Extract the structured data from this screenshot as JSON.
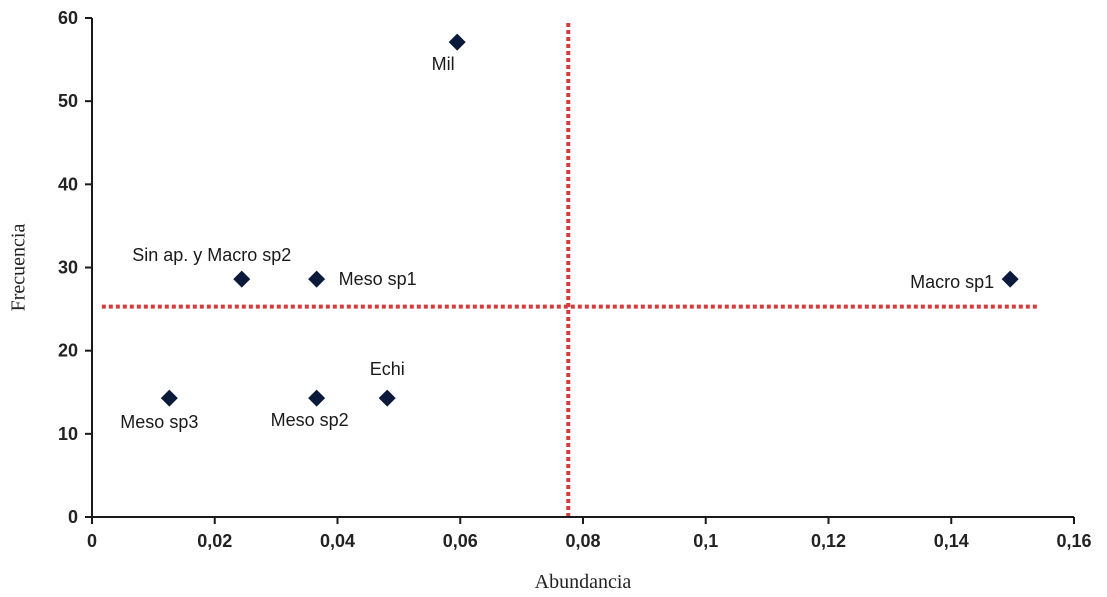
{
  "chart_data": {
    "type": "scatter",
    "xlabel": "Abundancia",
    "ylabel": "Frecuencia",
    "xlim": [
      0,
      0.16
    ],
    "ylim": [
      0,
      60
    ],
    "grid": false,
    "x_ticks": [
      {
        "value": 0,
        "label": "0"
      },
      {
        "value": 0.02,
        "label": "0,02"
      },
      {
        "value": 0.04,
        "label": "0,04"
      },
      {
        "value": 0.06,
        "label": "0,06"
      },
      {
        "value": 0.08,
        "label": "0,08"
      },
      {
        "value": 0.1,
        "label": "0,1"
      },
      {
        "value": 0.12,
        "label": "0,12"
      },
      {
        "value": 0.14,
        "label": "0,14"
      },
      {
        "value": 0.16,
        "label": "0,16"
      }
    ],
    "y_ticks": [
      {
        "value": 0,
        "label": "0"
      },
      {
        "value": 10,
        "label": "10"
      },
      {
        "value": 20,
        "label": "20"
      },
      {
        "value": 30,
        "label": "30"
      },
      {
        "value": 40,
        "label": "40"
      },
      {
        "value": 50,
        "label": "50"
      },
      {
        "value": 60,
        "label": "60"
      }
    ],
    "points": [
      {
        "label": "Mil",
        "x": 0.0595,
        "y": 57.1
      },
      {
        "label": "Sin ap. y Macro sp2",
        "x": 0.0244,
        "y": 28.6
      },
      {
        "label": "Meso sp1",
        "x": 0.0366,
        "y": 28.6
      },
      {
        "label": "Macro sp1",
        "x": 0.1496,
        "y": 28.6
      },
      {
        "label": "Echi",
        "x": 0.0481,
        "y": 14.3
      },
      {
        "label": "Meso sp3",
        "x": 0.0126,
        "y": 14.3
      },
      {
        "label": "Meso sp2",
        "x": 0.0366,
        "y": 14.3
      }
    ],
    "reference_lines": [
      {
        "orientation": "vertical",
        "x": 0.0776,
        "y_from": 0,
        "y_to": 59.5,
        "color": "#d63c3c",
        "style": "dotted"
      },
      {
        "orientation": "horizontal",
        "y": 25.3,
        "x_from": 0.0016,
        "x_to": 0.1544,
        "color": "#d63c3c",
        "style": "dotted"
      }
    ],
    "marker": {
      "shape": "diamond",
      "color": "#0b1a3a"
    },
    "axis_color": "#1a1a1a"
  }
}
